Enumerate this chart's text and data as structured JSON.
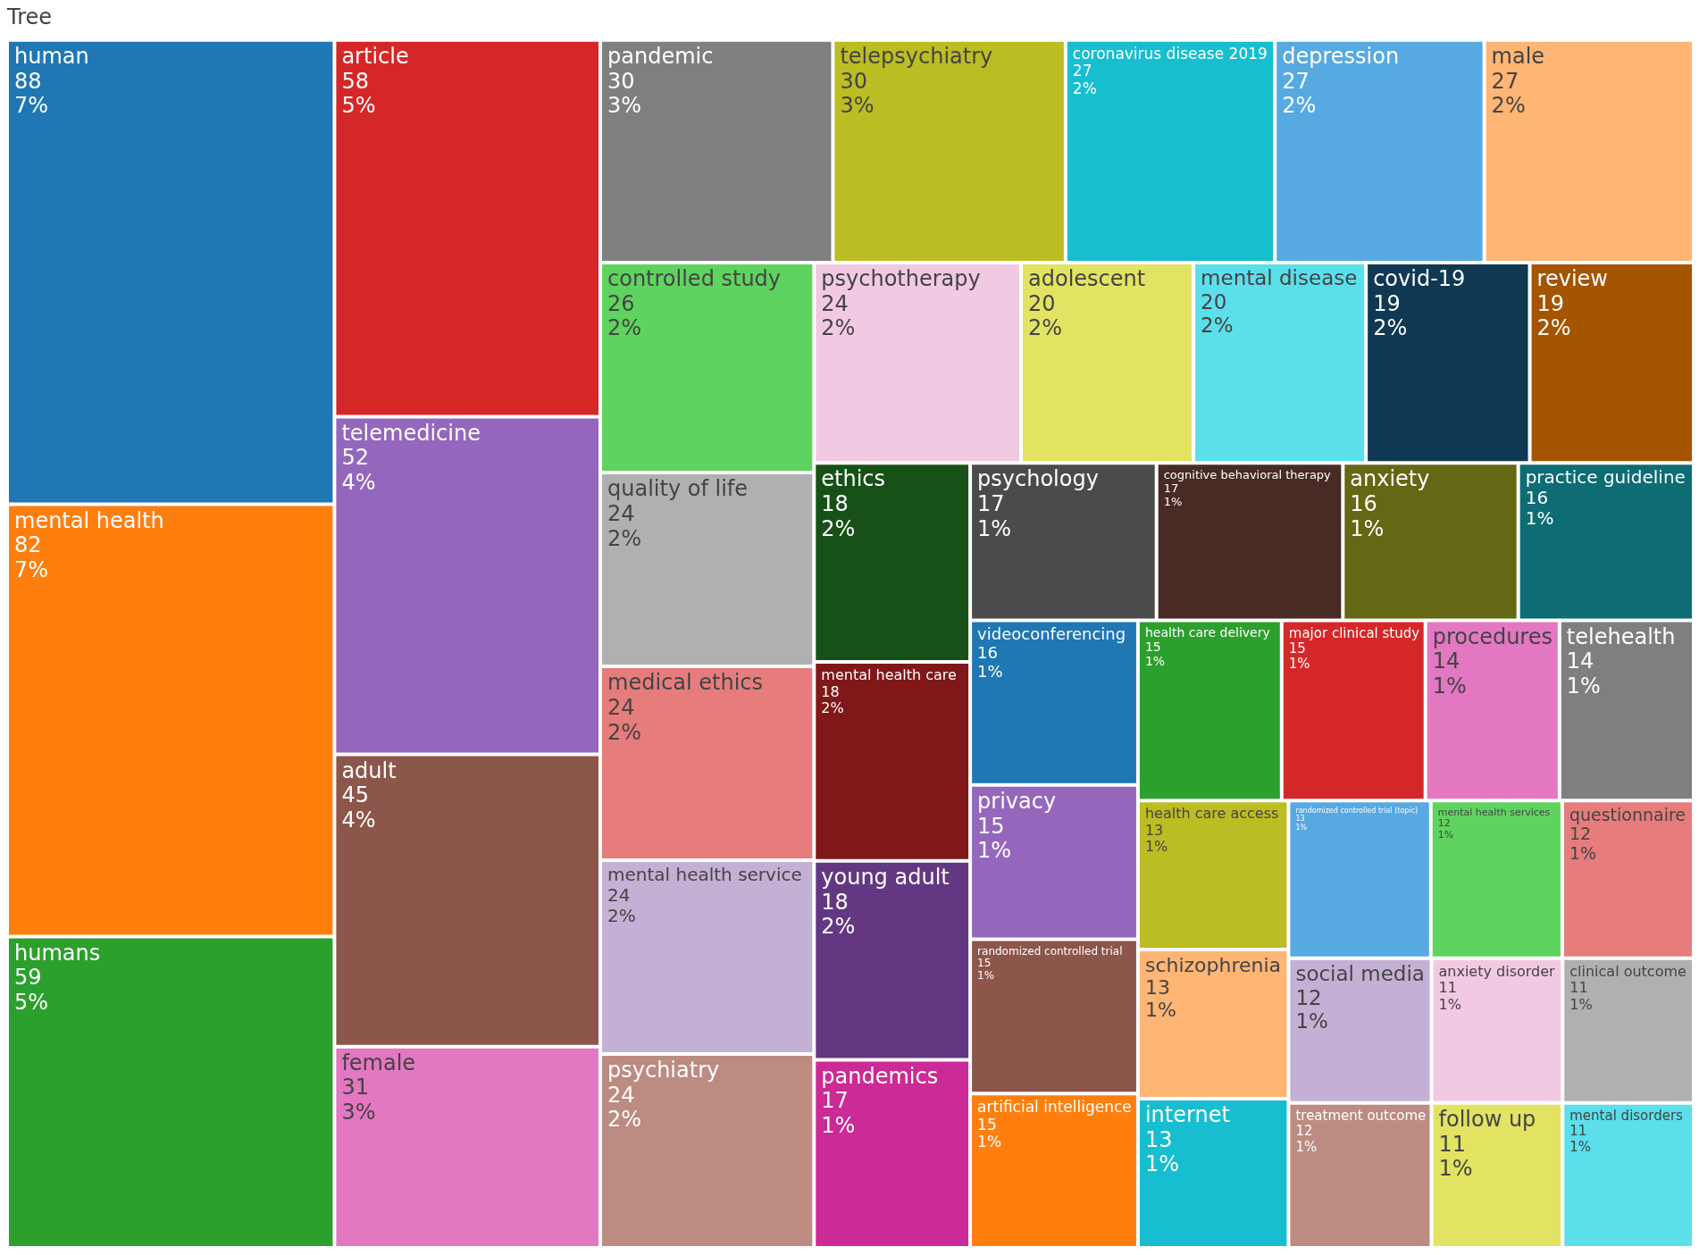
{
  "chart_data": {
    "type": "other",
    "title": "Tree",
    "categories": [
      "human",
      "mental health",
      "humans",
      "article",
      "telemedicine",
      "adult",
      "female",
      "pandemic",
      "telepsychiatry",
      "coronavirus disease 2019",
      "depression",
      "male",
      "controlled study",
      "quality of life",
      "medical ethics",
      "mental health service",
      "psychiatry",
      "psychotherapy",
      "adolescent",
      "mental disease",
      "covid-19",
      "review",
      "ethics",
      "mental health care",
      "young adult",
      "pandemics",
      "psychology",
      "cognitive behavioral therapy",
      "anxiety",
      "practice guideline",
      "videoconferencing",
      "privacy",
      "randomized controlled trial",
      "artificial intelligence",
      "health care delivery",
      "major clinical study",
      "procedures",
      "telehealth",
      "health care access",
      "schizophrenia",
      "internet",
      "randomized controlled trial (topic)",
      "mental health services",
      "questionnaire",
      "social media",
      "treatment outcome",
      "anxiety disorder",
      "clinical outcome",
      "follow up",
      "mental disorders"
    ],
    "values": [
      88,
      82,
      59,
      58,
      52,
      45,
      31,
      30,
      30,
      27,
      27,
      27,
      26,
      24,
      24,
      24,
      24,
      24,
      20,
      20,
      19,
      19,
      18,
      18,
      18,
      17,
      17,
      17,
      16,
      16,
      16,
      15,
      15,
      15,
      15,
      15,
      14,
      14,
      13,
      13,
      13,
      13,
      12,
      12,
      12,
      12,
      11,
      11,
      11,
      11
    ],
    "value_labels": [
      "88\n7%",
      "82\n7%",
      "59\n5%",
      "58\n5%",
      "52\n4%",
      "45\n4%",
      "31\n3%",
      "30\n3%",
      "30\n3%",
      "27\n2%",
      "27\n2%",
      "27\n2%",
      "26\n2%",
      "24\n2%",
      "24\n2%",
      "24\n2%",
      "24\n2%",
      "24\n2%",
      "20\n2%",
      "20\n2%",
      "19\n2%",
      "19\n2%",
      "18\n2%",
      "18\n2%",
      "18\n2%",
      "17\n1%",
      "17\n1%",
      "17\n1%",
      "16\n1%",
      "16\n1%",
      "16\n1%",
      "15\n1%",
      "15\n1%",
      "15\n1%",
      "15\n1%",
      "15\n1%",
      "14\n1%",
      "14\n1%",
      "13\n1%",
      "13\n1%",
      "13\n1%",
      "13\n1%",
      "12\n1%",
      "12\n1%",
      "12\n1%",
      "12\n1%",
      "11\n1%",
      "11\n1%",
      "11\n1%",
      "11\n1%"
    ],
    "colors": [
      "#1f77b4",
      "#ff7f0e",
      "#2ca02c",
      "#d62728",
      "#9467bd",
      "#8c564b",
      "#e377c2",
      "#7f7f7f",
      "#bcbd22",
      "#17becf",
      "#57a9e2",
      "#ffb574",
      "#5fd35f",
      "#b0b0b0",
      "#e77c7c",
      "#c5b0d5",
      "#bc8b81",
      "#f2c9e3",
      "#e2e362",
      "#5bdfeb",
      "#103853",
      "#a55400",
      "#175118",
      "#801719",
      "#633782",
      "#cc2a96",
      "#4b4b4b",
      "#482b25",
      "#646713",
      "#0d6c74",
      "#1f77b4",
      "#9467bd",
      "#8c564b",
      "#ff7f0e",
      "#2ca02c",
      "#d62728",
      "#e377c2",
      "#7f7f7f",
      "#bcbd22",
      "#ffb574",
      "#17becf",
      "#57a9e2",
      "#5fd35f",
      "#e77c7c",
      "#c5b0d5",
      "#bc8b81",
      "#f2c9e3",
      "#b0b0b0",
      "#e2e362",
      "#5bdfeb"
    ]
  }
}
